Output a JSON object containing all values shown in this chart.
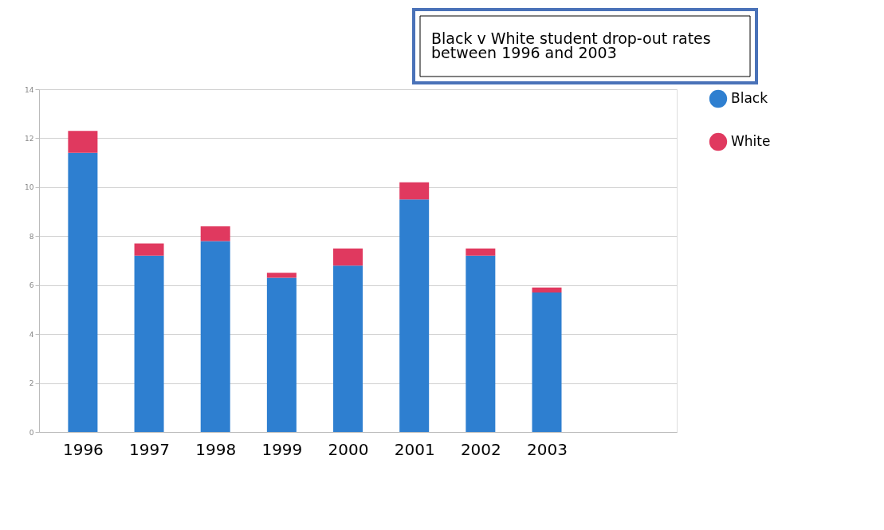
{
  "chart_data": {
    "type": "bar",
    "title": "Black v White student drop-out rates between 1996 and 2003",
    "categories": [
      "1996",
      "1997",
      "1998",
      "1999",
      "2000",
      "2001",
      "2002",
      "2003"
    ],
    "stacked": true,
    "series": [
      {
        "name": "Black",
        "color": "#2e7fd0",
        "values": [
          11.4,
          7.2,
          7.8,
          6.3,
          6.8,
          9.5,
          7.2,
          5.7
        ]
      },
      {
        "name": "White",
        "color": "#e0395f",
        "values": [
          0.9,
          0.5,
          0.6,
          0.2,
          0.7,
          0.7,
          0.3,
          0.2
        ]
      }
    ],
    "ylim": [
      0,
      14
    ],
    "yticks": [
      0,
      2,
      4,
      6,
      8,
      10,
      12,
      14
    ],
    "grid": "y",
    "legend": "right"
  }
}
